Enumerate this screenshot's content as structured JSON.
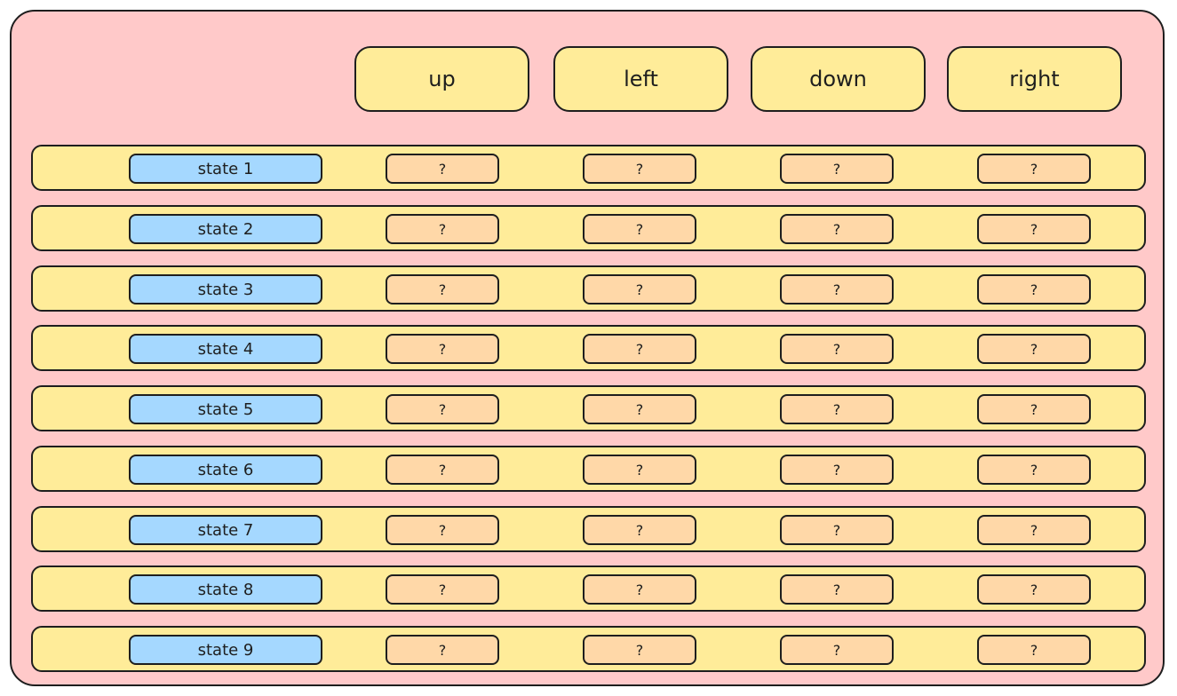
{
  "colors": {
    "background": "#ffc9c9",
    "header_fill": "#ffec99",
    "row_fill": "#ffec99",
    "state_fill": "#a5d8ff",
    "cell_fill": "#ffd8a8",
    "stroke": "#1e1e1e"
  },
  "actions": [
    "up",
    "left",
    "down",
    "right"
  ],
  "states": [
    {
      "label": "state 1",
      "values": [
        "?",
        "?",
        "?",
        "?"
      ]
    },
    {
      "label": "state 2",
      "values": [
        "?",
        "?",
        "?",
        "?"
      ]
    },
    {
      "label": "state 3",
      "values": [
        "?",
        "?",
        "?",
        "?"
      ]
    },
    {
      "label": "state 4",
      "values": [
        "?",
        "?",
        "?",
        "?"
      ]
    },
    {
      "label": "state 5",
      "values": [
        "?",
        "?",
        "?",
        "?"
      ]
    },
    {
      "label": "state 6",
      "values": [
        "?",
        "?",
        "?",
        "?"
      ]
    },
    {
      "label": "state 7",
      "values": [
        "?",
        "?",
        "?",
        "?"
      ]
    },
    {
      "label": "state 8",
      "values": [
        "?",
        "?",
        "?",
        "?"
      ]
    },
    {
      "label": "state 9",
      "values": [
        "?",
        "?",
        "?",
        "?"
      ]
    }
  ]
}
